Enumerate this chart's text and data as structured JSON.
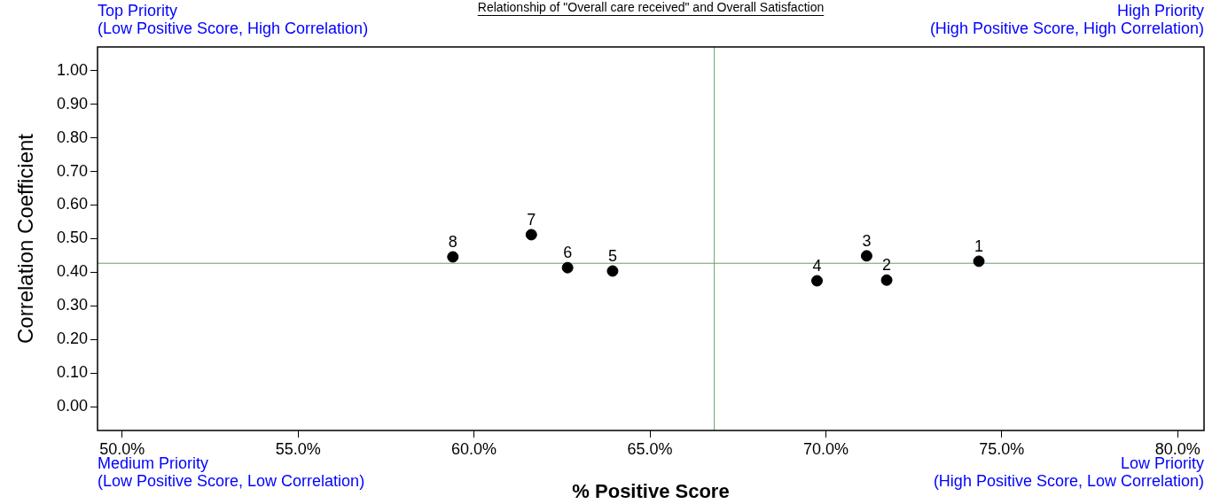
{
  "chart_data": {
    "type": "scatter",
    "title": "Relationship of \"Overall care received\" and Overall Satisfaction",
    "xlabel": "% Positive Score",
    "ylabel": "Correlation Coefficient",
    "x": [
      74.35,
      71.73,
      71.16,
      69.75,
      63.94,
      62.66,
      61.63,
      59.4
    ],
    "series": [
      {
        "color": "#000000",
        "values": [
          0.433,
          0.377,
          0.449,
          0.375,
          0.404,
          0.414,
          0.512,
          0.446
        ]
      }
    ],
    "marker": "circle",
    "xlim": [
      49.3,
      80.75
    ],
    "xticks": [
      {
        "value": 50,
        "label": "50.0%"
      },
      {
        "value": 55,
        "label": "55.0%"
      },
      {
        "value": 60,
        "label": "60.0%"
      },
      {
        "value": 65,
        "label": "65.0%"
      },
      {
        "value": 70,
        "label": "70.0%"
      },
      {
        "value": 75,
        "label": "75.0%"
      },
      {
        "value": 80,
        "label": "80.0%"
      }
    ],
    "ylim": [
      -0.07,
      1.07
    ],
    "yticks": [
      {
        "value": 0,
        "label": "0.00"
      },
      {
        "value": 0.1,
        "label": "0.10"
      },
      {
        "value": 0.2,
        "label": "0.20"
      },
      {
        "value": 0.3,
        "label": "0.30"
      },
      {
        "value": 0.4,
        "label": "0.40"
      },
      {
        "value": 0.5,
        "label": "0.50"
      },
      {
        "value": 0.6,
        "label": "0.60"
      },
      {
        "value": 0.7,
        "label": "0.70"
      },
      {
        "value": 0.8,
        "label": "0.80"
      },
      {
        "value": 0.9,
        "label": "0.90"
      },
      {
        "value": 1,
        "label": "1.00"
      }
    ],
    "grid": false,
    "legend": false,
    "ref_lines": [
      {
        "axis": "x",
        "value": 66.83,
        "color": "#6a9f6a"
      },
      {
        "axis": "y",
        "value": 0.427,
        "color": "#6a9f6a"
      }
    ],
    "annotations": [
      {
        "text": "1",
        "x": 74.35,
        "y": 0.433
      },
      {
        "text": "2",
        "x": 71.73,
        "y": 0.377
      },
      {
        "text": "3",
        "x": 71.16,
        "y": 0.449
      },
      {
        "text": "4",
        "x": 69.75,
        "y": 0.375
      },
      {
        "text": "5",
        "x": 63.94,
        "y": 0.404
      },
      {
        "text": "6",
        "x": 62.66,
        "y": 0.414
      },
      {
        "text": "7",
        "x": 61.63,
        "y": 0.512
      },
      {
        "text": "8",
        "x": 59.4,
        "y": 0.446
      },
      "Top Priority\n(Low Positive Score, High Correlation)",
      "High Priority\n(High Positive Score, High Correlation)",
      "Medium Priority\n(Low Positive Score, Low Correlation)",
      "Low Priority\n(High Positive Score, Low Correlation)"
    ]
  }
}
